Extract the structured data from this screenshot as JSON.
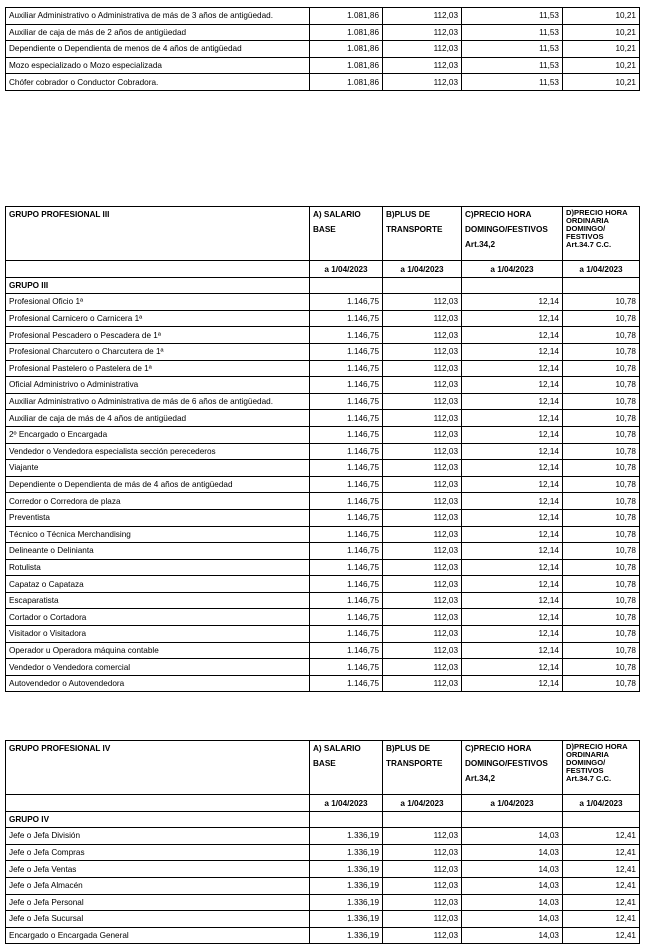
{
  "top_rows": [
    {
      "name": "Auxiliar Administrativo o Administrativa de más de 3 años de antigüedad.",
      "a": "1.081,86",
      "b": "112,03",
      "c": "11,53",
      "d": "10,21"
    },
    {
      "name": "Auxiliar de caja de más de 2 años de antigüedad",
      "a": "1.081,86",
      "b": "112,03",
      "c": "11,53",
      "d": "10,21"
    },
    {
      "name": "Dependiente o Dependienta de menos de 4 años de antigüedad",
      "a": "1.081,86",
      "b": "112,03",
      "c": "11,53",
      "d": "10,21"
    },
    {
      "name": "Mozo especializado o Mozo especializada",
      "a": "1.081,86",
      "b": "112,03",
      "c": "11,53",
      "d": "10,21"
    },
    {
      "name": "Chófer cobrador o Conductor Cobradora.",
      "a": "1.081,86",
      "b": "112,03",
      "c": "11,53",
      "d": "10,21"
    }
  ],
  "group3": {
    "title": "GRUPO PROFESIONAL III",
    "col_a": [
      "A) SALARIO",
      "BASE"
    ],
    "col_b": [
      "B)PLUS DE",
      "TRANSPORTE"
    ],
    "col_c": [
      "C)PRECIO HORA",
      "DOMINGO/FESTIVOS",
      "Art.34,2"
    ],
    "col_d": [
      "D)PRECIO HORA",
      "ORDINARIA",
      "DOMINGO/",
      "FESTIVOS",
      "Art.34.7 C.C."
    ],
    "date": "a 1/04/2023",
    "group_label": "GRUPO III",
    "rows": [
      {
        "name": "Profesional Oficio 1ª",
        "a": "1.146,75",
        "b": "112,03",
        "c": "12,14",
        "d": "10,78"
      },
      {
        "name": "Profesional Carnicero o Carnicera 1ª",
        "a": "1.146,75",
        "b": "112,03",
        "c": "12,14",
        "d": "10,78"
      },
      {
        "name": "Profesional Pescadero o Pescadera de 1ª",
        "a": "1.146,75",
        "b": "112,03",
        "c": "12,14",
        "d": "10,78"
      },
      {
        "name": "Profesional Charcutero o Charcutera de 1ª",
        "a": "1.146,75",
        "b": "112,03",
        "c": "12,14",
        "d": "10,78"
      },
      {
        "name": "Profesional Pastelero o Pastelera de 1ª",
        "a": "1.146,75",
        "b": "112,03",
        "c": "12,14",
        "d": "10,78"
      },
      {
        "name": "Oficial Administrivo o Administrativa",
        "a": "1.146,75",
        "b": "112,03",
        "c": "12,14",
        "d": "10,78"
      },
      {
        "name": "Auxiliar Administrativo o Administrativa de más de 6 años de antigüedad.",
        "a": "1.146,75",
        "b": "112,03",
        "c": "12,14",
        "d": "10,78"
      },
      {
        "name": "Auxiliar de caja de más de 4 años de antigüedad",
        "a": "1.146,75",
        "b": "112,03",
        "c": "12,14",
        "d": "10,78"
      },
      {
        "name": "2º Encargado o Encargada",
        "a": "1.146,75",
        "b": "112,03",
        "c": "12,14",
        "d": "10,78"
      },
      {
        "name": "Vendedor o Vendedora especialista sección perecederos",
        "a": "1.146,75",
        "b": "112,03",
        "c": "12,14",
        "d": "10,78"
      },
      {
        "name": "Viajante",
        "a": "1.146,75",
        "b": "112,03",
        "c": "12,14",
        "d": "10,78"
      },
      {
        "name": "Dependiente o Dependienta de más de 4 años de antigüedad",
        "a": "1.146,75",
        "b": "112,03",
        "c": "12,14",
        "d": "10,78"
      },
      {
        "name": "Corredor o Corredora de plaza",
        "a": "1.146,75",
        "b": "112,03",
        "c": "12,14",
        "d": "10,78"
      },
      {
        "name": "Preventista",
        "a": "1.146,75",
        "b": "112,03",
        "c": "12,14",
        "d": "10,78"
      },
      {
        "name": "Técnico o Técnica Merchandising",
        "a": "1.146,75",
        "b": "112,03",
        "c": "12,14",
        "d": "10,78"
      },
      {
        "name": "Delineante o Delinianta",
        "a": "1.146,75",
        "b": "112,03",
        "c": "12,14",
        "d": "10,78"
      },
      {
        "name": "Rotulista",
        "a": "1.146,75",
        "b": "112,03",
        "c": "12,14",
        "d": "10,78"
      },
      {
        "name": "Capataz o Capataza",
        "a": "1.146,75",
        "b": "112,03",
        "c": "12,14",
        "d": "10,78"
      },
      {
        "name": "Escaparatista",
        "a": "1.146,75",
        "b": "112,03",
        "c": "12,14",
        "d": "10,78"
      },
      {
        "name": "Cortador o Cortadora",
        "a": "1.146,75",
        "b": "112,03",
        "c": "12,14",
        "d": "10,78"
      },
      {
        "name": "Visitador o Visitadora",
        "a": "1.146,75",
        "b": "112,03",
        "c": "12,14",
        "d": "10,78"
      },
      {
        "name": "Operador u Operadora máquina contable",
        "a": "1.146,75",
        "b": "112,03",
        "c": "12,14",
        "d": "10,78"
      },
      {
        "name": "Vendedor o Vendedora comercial",
        "a": "1.146,75",
        "b": "112,03",
        "c": "12,14",
        "d": "10,78"
      },
      {
        "name": "Autovendedor o Autovendedora",
        "a": "1.146,75",
        "b": "112,03",
        "c": "12,14",
        "d": "10,78"
      }
    ]
  },
  "group4": {
    "title": "GRUPO PROFESIONAL IV",
    "col_a": [
      "A) SALARIO",
      "BASE"
    ],
    "col_b": [
      "B)PLUS DE",
      "TRANSPORTE"
    ],
    "col_c": [
      "C)PRECIO HORA",
      "DOMINGO/FESTIVOS",
      "Art.34,2"
    ],
    "col_d": [
      "D)PRECIO HORA",
      "ORDINARIA",
      "DOMINGO/",
      "FESTIVOS",
      "Art.34.7 C.C."
    ],
    "date": "a 1/04/2023",
    "group_label": "GRUPO IV",
    "rows": [
      {
        "name": "Jefe o Jefa División",
        "a": "1.336,19",
        "b": "112,03",
        "c": "14,03",
        "d": "12,41"
      },
      {
        "name": "Jefe o Jefa Compras",
        "a": "1.336,19",
        "b": "112,03",
        "c": "14,03",
        "d": "12,41"
      },
      {
        "name": "Jefe o Jefa Ventas",
        "a": "1.336,19",
        "b": "112,03",
        "c": "14,03",
        "d": "12,41"
      },
      {
        "name": "Jefe o Jefa Almacén",
        "a": "1.336,19",
        "b": "112,03",
        "c": "14,03",
        "d": "12,41"
      },
      {
        "name": "Jefe o Jefa Personal",
        "a": "1.336,19",
        "b": "112,03",
        "c": "14,03",
        "d": "12,41"
      },
      {
        "name": "Jefe o Jefa Sucursal",
        "a": "1.336,19",
        "b": "112,03",
        "c": "14,03",
        "d": "12,41"
      },
      {
        "name": "Encargado o Encargada General",
        "a": "1.336,19",
        "b": "112,03",
        "c": "14,03",
        "d": "12,41"
      }
    ]
  }
}
